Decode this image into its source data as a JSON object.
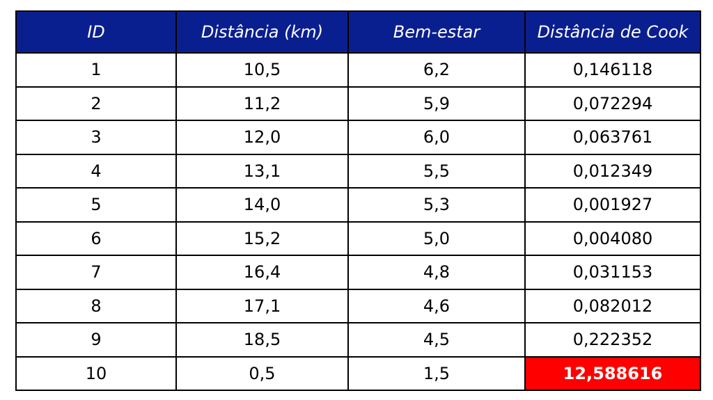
{
  "table": {
    "headers": [
      "ID",
      "Distância (km)",
      "Bem-estar",
      "Distância de Cook"
    ],
    "rows": [
      [
        "1",
        "10,5",
        "6,2",
        "0,146118"
      ],
      [
        "2",
        "11,2",
        "5,9",
        "0,072294"
      ],
      [
        "3",
        "12,0",
        "6,0",
        "0,063761"
      ],
      [
        "4",
        "13,1",
        "5,5",
        "0,012349"
      ],
      [
        "5",
        "14,0",
        "5,3",
        "0,001927"
      ],
      [
        "6",
        "15,2",
        "5,0",
        "0,004080"
      ],
      [
        "7",
        "16,4",
        "4,8",
        "0,031153"
      ],
      [
        "8",
        "17,1",
        "4,6",
        "0,082012"
      ],
      [
        "9",
        "18,5",
        "4,5",
        "0,222352"
      ],
      [
        "10",
        "0,5",
        "1,5",
        "12,588616"
      ]
    ],
    "highlighted_cell": {
      "row": 9,
      "col": 3
    },
    "colors": {
      "header_bg": "#0a1f8f",
      "header_text": "#ffffff",
      "highlight_bg": "#ff0000",
      "highlight_text": "#ffffff",
      "border": "#000000"
    }
  }
}
